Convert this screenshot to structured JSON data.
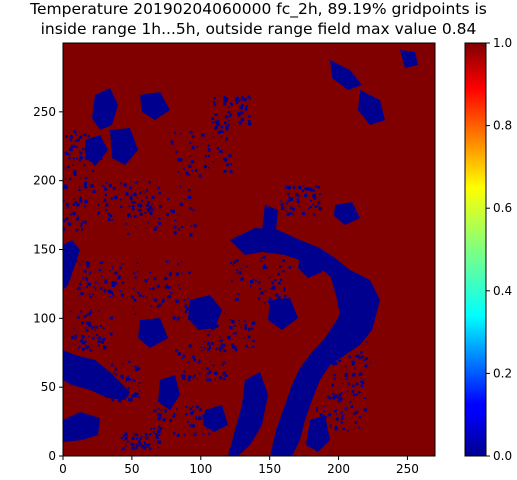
{
  "chart_data": {
    "type": "heatmap",
    "title_line1": "Temperature 20190204060000 fc_2h, 89.19% gridpoints is",
    "title_line2": "inside range 1h...5h, outside range field max value 0.84",
    "xlabel": "",
    "ylabel": "",
    "xlim": [
      0,
      270
    ],
    "ylim": [
      0,
      300
    ],
    "x_ticks": [
      0,
      50,
      100,
      150,
      200,
      250
    ],
    "y_ticks": [
      0,
      50,
      100,
      150,
      200,
      250
    ],
    "colorbar": {
      "colormap": "jet",
      "range": [
        0.0,
        1.0
      ],
      "ticks": [
        "0.0",
        "0.2",
        "0.4",
        "0.6",
        "0.8",
        "1.0"
      ]
    },
    "field_description": "mostly 1.0 (dark red) with scattered regions of 0.0 (dark blue)",
    "background_value": 1.0,
    "patch_value": 0.0,
    "colors": {
      "high": "#800000",
      "low": "#00008f"
    },
    "grid": false
  }
}
